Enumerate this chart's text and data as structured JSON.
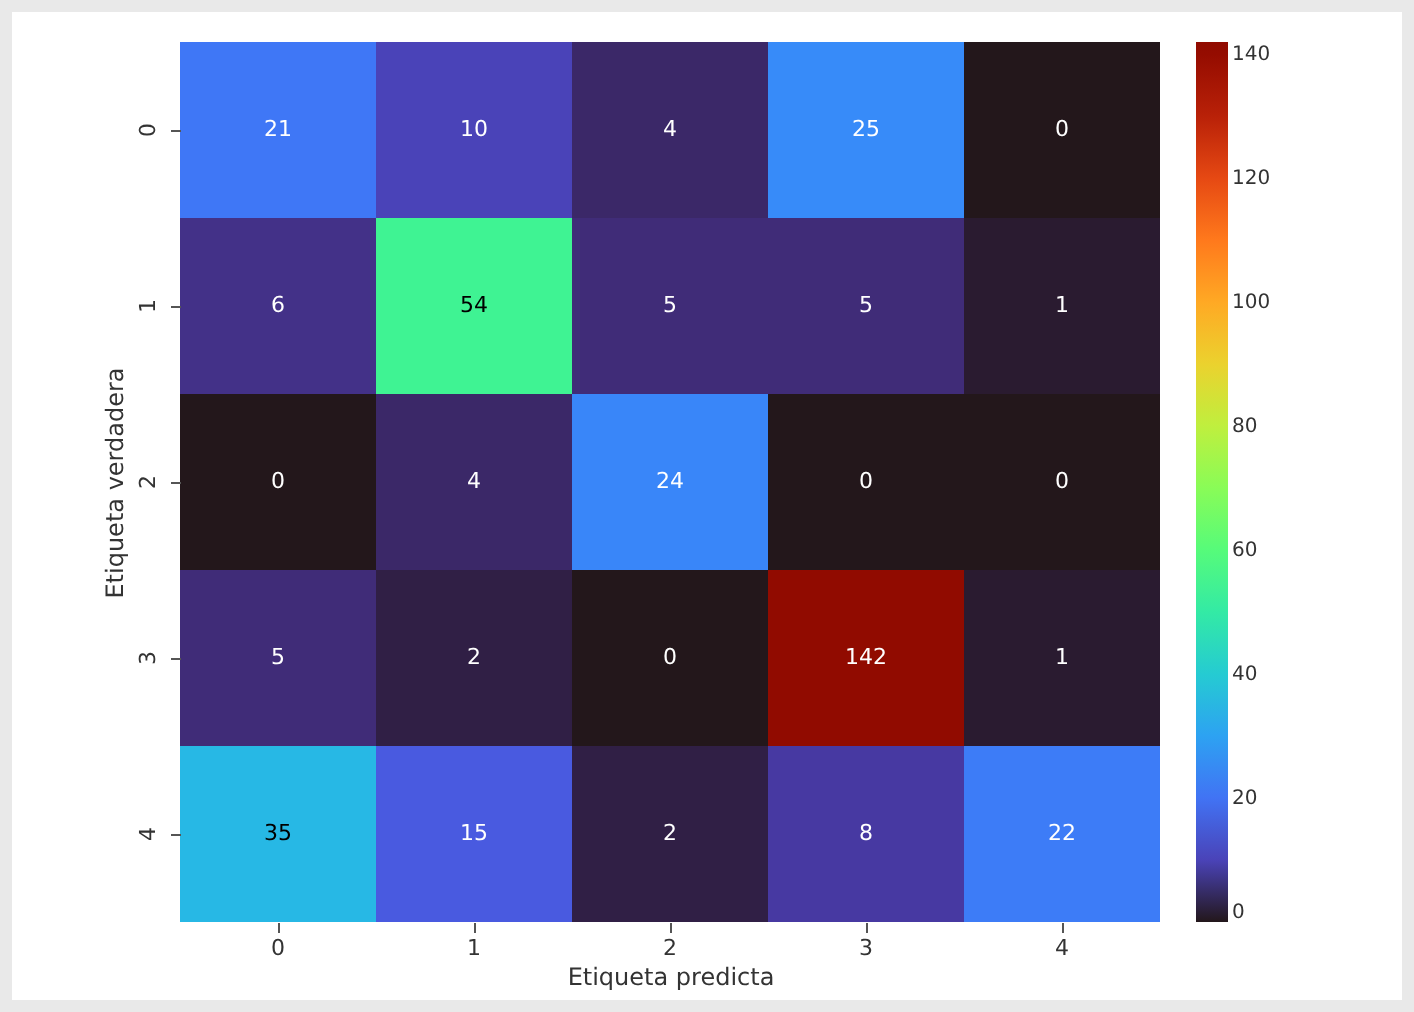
{
  "chart_data": {
    "type": "heatmap",
    "xlabel": "Etiqueta predicta",
    "ylabel": "Etiqueta verdadera",
    "categories": [
      "0",
      "1",
      "2",
      "3",
      "4"
    ],
    "y_categories": [
      "0",
      "1",
      "2",
      "3",
      "4"
    ],
    "cells": [
      [
        21,
        10,
        4,
        25,
        0
      ],
      [
        6,
        54,
        5,
        5,
        1
      ],
      [
        0,
        4,
        24,
        0,
        0
      ],
      [
        5,
        2,
        0,
        142,
        1
      ],
      [
        35,
        15,
        2,
        8,
        22
      ]
    ],
    "clim": [
      0,
      142
    ],
    "cticks": [
      0,
      20,
      40,
      60,
      80,
      100,
      120,
      140
    ],
    "data_labels": true
  }
}
